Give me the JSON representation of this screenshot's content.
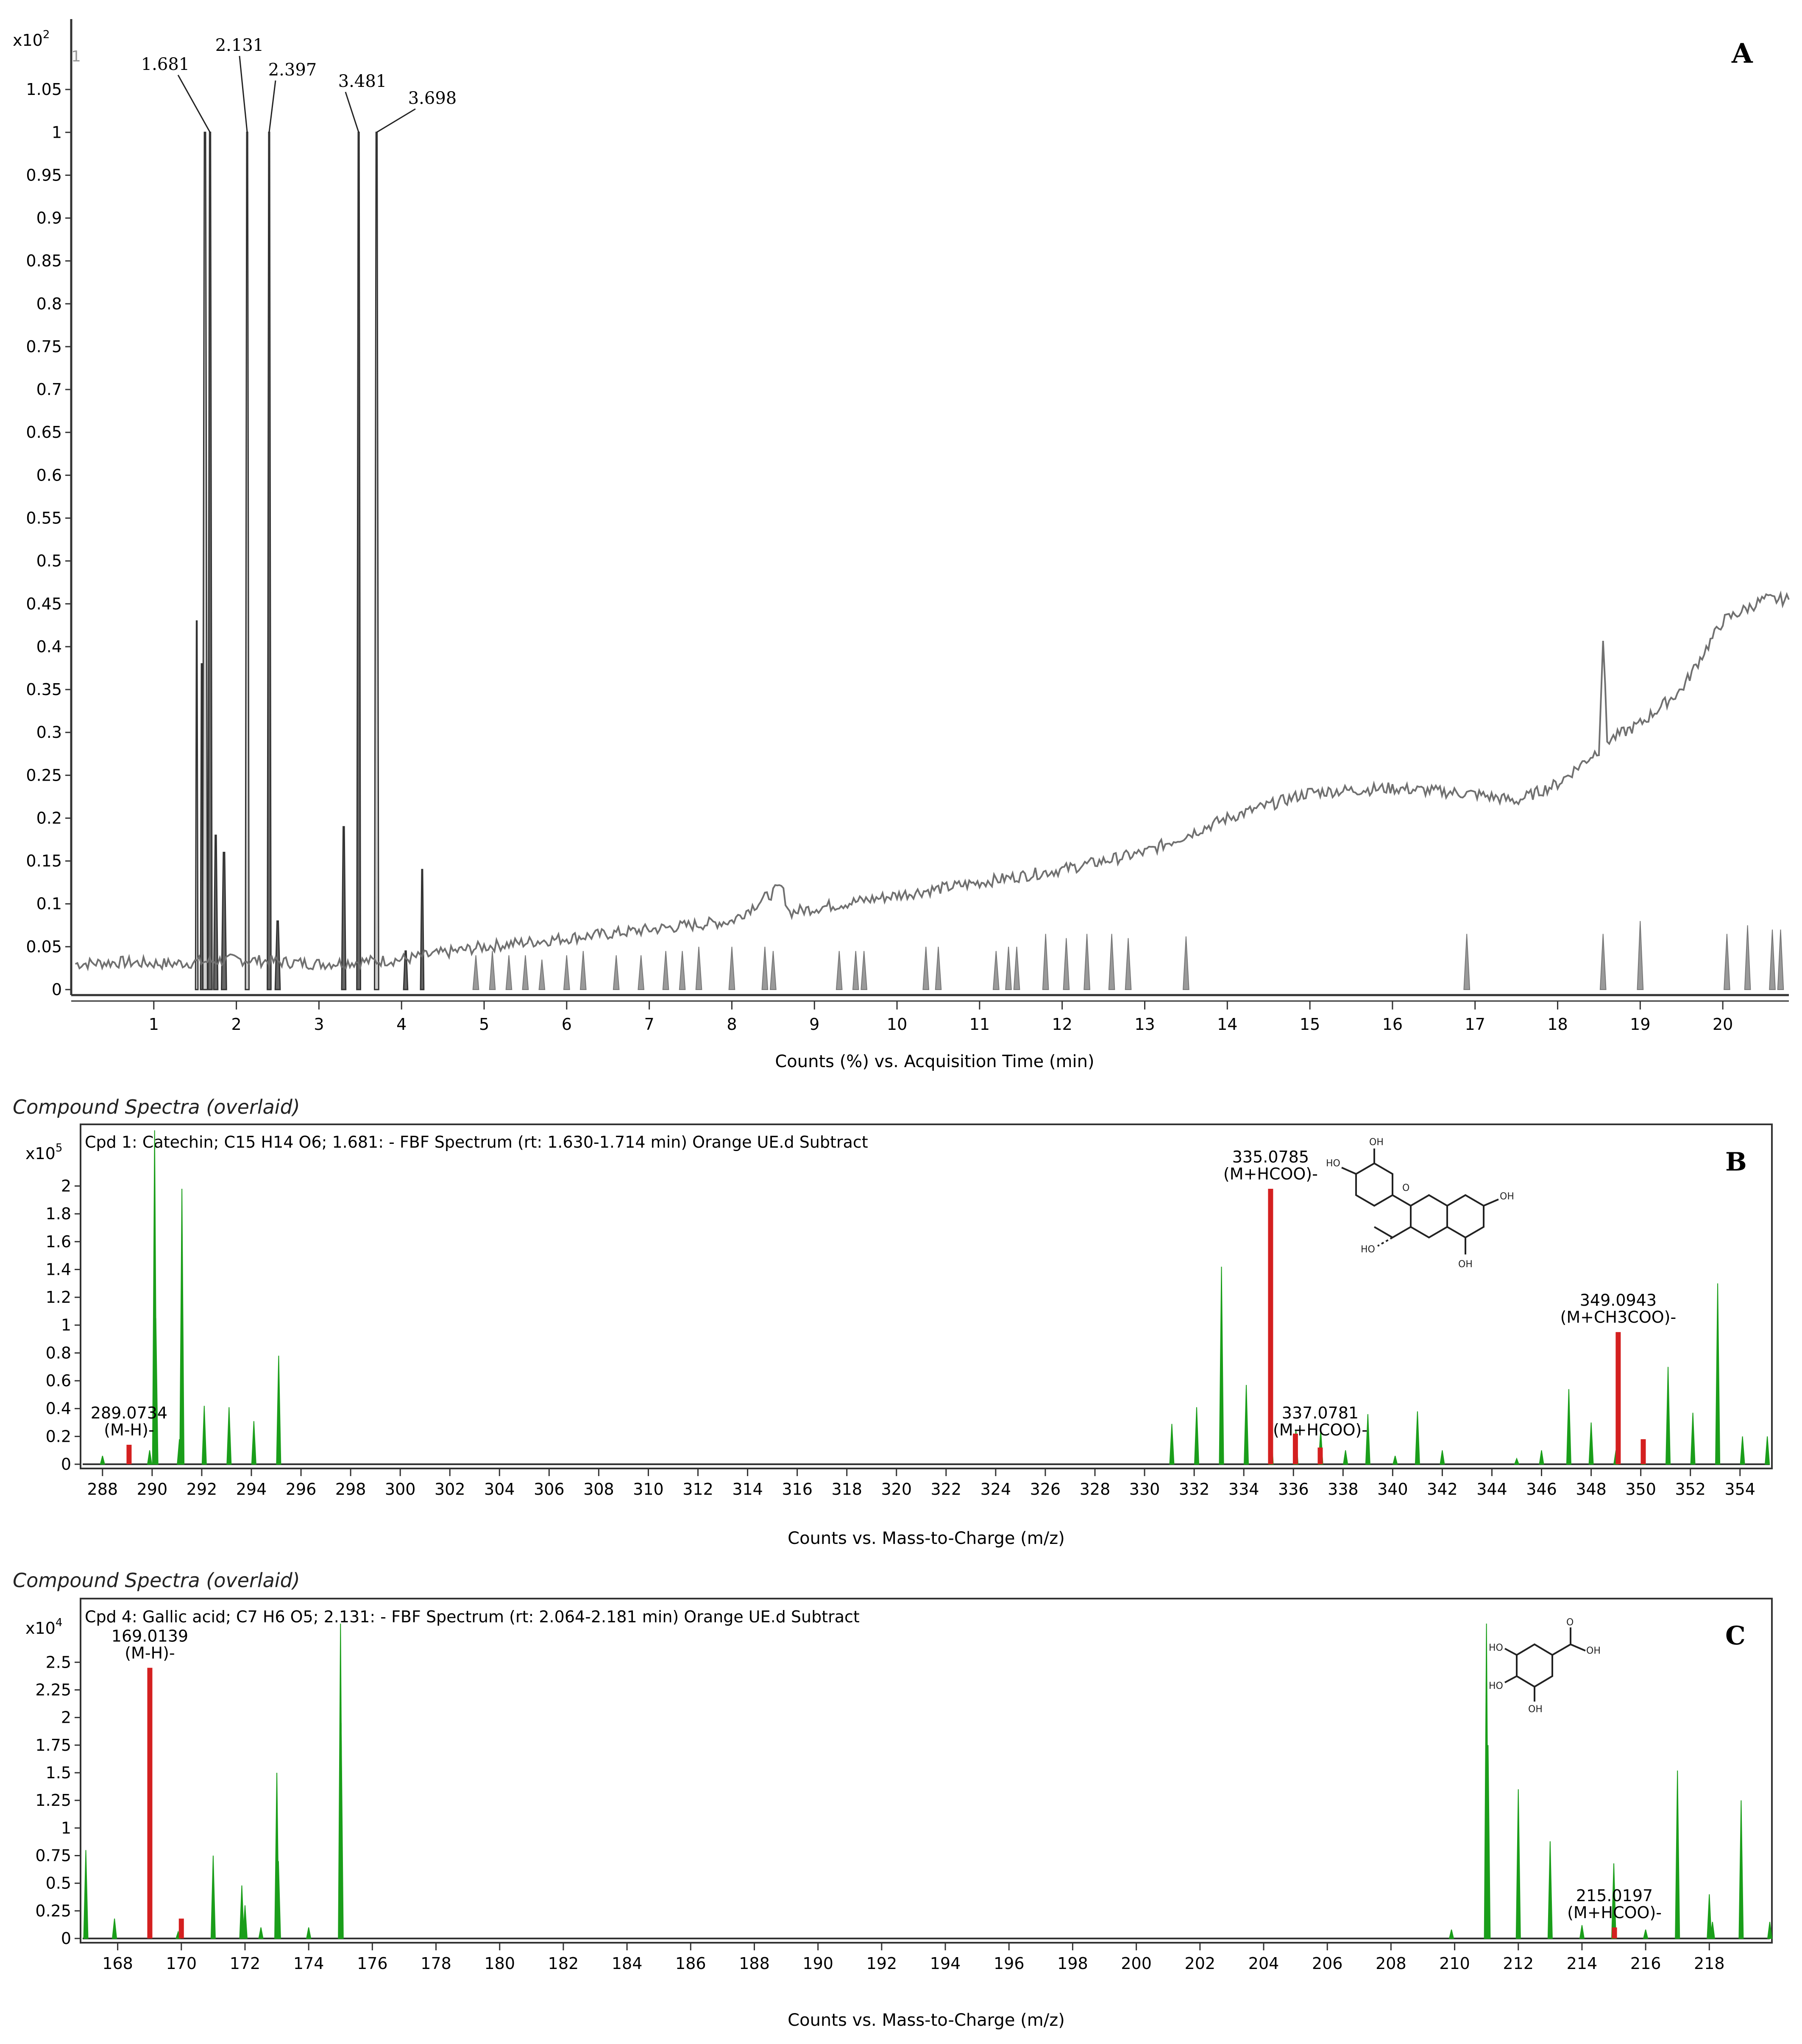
{
  "colors": {
    "background": "#ffffff",
    "axis": "#333333",
    "chromatogram_line": "#707070",
    "peak_fill_dark": "#555555",
    "peak_fill_light": "#c8c8c8",
    "spectrum_green": "#1a9e1a",
    "spectrum_red": "#d42020",
    "frame": "#333333"
  },
  "chart_data": [
    {
      "type": "line",
      "panel_label": "A",
      "multiplier_prefix": "x10",
      "multiplier_exp": "2",
      "corner_mark": "1",
      "xlabel": "Counts (%) vs. Acquisition Time (min)",
      "ylabel": "",
      "xlim": [
        0,
        20.8
      ],
      "ylim": [
        0,
        1.1
      ],
      "x_ticks": [
        "1",
        "2",
        "3",
        "4",
        "5",
        "6",
        "7",
        "8",
        "9",
        "10",
        "11",
        "12",
        "13",
        "14",
        "15",
        "16",
        "17",
        "18",
        "19",
        "20"
      ],
      "y_ticks": [
        "0",
        "0.05",
        "0.1",
        "0.15",
        "0.2",
        "0.25",
        "0.3",
        "0.35",
        "0.4",
        "0.45",
        "0.5",
        "0.55",
        "0.6",
        "0.65",
        "0.7",
        "0.75",
        "0.8",
        "0.85",
        "0.9",
        "0.95",
        "1",
        "1.05"
      ],
      "peak_annotations": [
        {
          "label": "1.681",
          "x": 1.681,
          "y": 1.0
        },
        {
          "label": "2.131",
          "x": 2.131,
          "y": 1.0
        },
        {
          "label": "2.397",
          "x": 2.397,
          "y": 1.0
        },
        {
          "label": "3.481",
          "x": 3.481,
          "y": 1.0
        },
        {
          "label": "3.698",
          "x": 3.698,
          "y": 1.0
        }
      ],
      "baseline_trace": [
        [
          0.05,
          0.03
        ],
        [
          0.6,
          0.032
        ],
        [
          1.2,
          0.03
        ],
        [
          2.0,
          0.035
        ],
        [
          3.0,
          0.03
        ],
        [
          4.0,
          0.035
        ],
        [
          5.0,
          0.05
        ],
        [
          6.0,
          0.06
        ],
        [
          7.0,
          0.07
        ],
        [
          8.0,
          0.08
        ],
        [
          8.6,
          0.12
        ],
        [
          8.7,
          0.09
        ],
        [
          9.0,
          0.095
        ],
        [
          10.0,
          0.11
        ],
        [
          11.0,
          0.125
        ],
        [
          12.0,
          0.14
        ],
        [
          13.0,
          0.16
        ],
        [
          14.0,
          0.2
        ],
        [
          15.0,
          0.23
        ],
        [
          16.0,
          0.235
        ],
        [
          17.0,
          0.228
        ],
        [
          17.5,
          0.22
        ],
        [
          18.0,
          0.24
        ],
        [
          18.5,
          0.28
        ],
        [
          18.55,
          0.41
        ],
        [
          18.6,
          0.29
        ],
        [
          19.0,
          0.31
        ],
        [
          19.5,
          0.35
        ],
        [
          20.0,
          0.43
        ],
        [
          20.5,
          0.455
        ],
        [
          20.8,
          0.455
        ]
      ],
      "series": [
        {
          "x": 1.681,
          "height": 1.0,
          "width": 0.05,
          "shade": "dark"
        },
        {
          "x": 1.62,
          "height": 1.0,
          "width": 0.06,
          "shade": "light"
        },
        {
          "x": 2.131,
          "height": 1.0,
          "width": 0.045,
          "shade": "light"
        },
        {
          "x": 2.397,
          "height": 1.0,
          "width": 0.045,
          "shade": "dark"
        },
        {
          "x": 3.481,
          "height": 1.0,
          "width": 0.045,
          "shade": "dark"
        },
        {
          "x": 3.698,
          "height": 1.0,
          "width": 0.05,
          "shade": "light"
        },
        {
          "x": 1.52,
          "height": 0.43,
          "width": 0.03,
          "shade": "light"
        },
        {
          "x": 1.58,
          "height": 0.38,
          "width": 0.03,
          "shade": "dark"
        },
        {
          "x": 1.75,
          "height": 0.18,
          "width": 0.05,
          "shade": "dark"
        },
        {
          "x": 1.85,
          "height": 0.16,
          "width": 0.06,
          "shade": "dark"
        },
        {
          "x": 2.5,
          "height": 0.08,
          "width": 0.06,
          "shade": "dark"
        },
        {
          "x": 3.3,
          "height": 0.19,
          "width": 0.05,
          "shade": "dark"
        },
        {
          "x": 4.25,
          "height": 0.14,
          "width": 0.04,
          "shade": "dark"
        },
        {
          "x": 4.05,
          "height": 0.045,
          "width": 0.05,
          "shade": "dark"
        }
      ],
      "small_peaks": [
        [
          4.9,
          0.04
        ],
        [
          5.1,
          0.045
        ],
        [
          5.3,
          0.04
        ],
        [
          5.5,
          0.04
        ],
        [
          5.7,
          0.035
        ],
        [
          6.0,
          0.04
        ],
        [
          6.2,
          0.045
        ],
        [
          6.6,
          0.04
        ],
        [
          6.9,
          0.04
        ],
        [
          7.2,
          0.045
        ],
        [
          7.4,
          0.045
        ],
        [
          7.6,
          0.05
        ],
        [
          8.0,
          0.05
        ],
        [
          8.4,
          0.05
        ],
        [
          8.5,
          0.045
        ],
        [
          9.3,
          0.045
        ],
        [
          9.5,
          0.045
        ],
        [
          9.6,
          0.045
        ],
        [
          10.35,
          0.05
        ],
        [
          10.5,
          0.05
        ],
        [
          11.2,
          0.045
        ],
        [
          11.35,
          0.05
        ],
        [
          11.45,
          0.05
        ],
        [
          11.8,
          0.065
        ],
        [
          12.05,
          0.06
        ],
        [
          12.3,
          0.065
        ],
        [
          12.6,
          0.065
        ],
        [
          12.8,
          0.06
        ],
        [
          13.5,
          0.062
        ],
        [
          16.9,
          0.065
        ],
        [
          18.55,
          0.065
        ],
        [
          19.0,
          0.08
        ],
        [
          20.05,
          0.065
        ],
        [
          20.3,
          0.075
        ],
        [
          20.6,
          0.07
        ],
        [
          20.7,
          0.07
        ]
      ]
    },
    {
      "type": "bar",
      "panel_label": "B",
      "section_title": "Compound Spectra (overlaid)",
      "header": "Cpd 1: Catechin; C15 H14 O6; 1.681: - FBF Spectrum (rt: 1.630-1.714 min) Orange UE.d  Subtract",
      "multiplier_prefix": "x10",
      "multiplier_exp": "5",
      "xlabel": "Counts vs. Mass-to-Charge (m/z)",
      "ylabel": "",
      "xlim": [
        287.2,
        355.2
      ],
      "ylim": [
        0,
        2.3
      ],
      "x_ticks": [
        "288",
        "290",
        "292",
        "294",
        "296",
        "298",
        "300",
        "302",
        "304",
        "306",
        "308",
        "310",
        "312",
        "314",
        "316",
        "318",
        "320",
        "322",
        "324",
        "326",
        "328",
        "330",
        "332",
        "334",
        "336",
        "338",
        "340",
        "342",
        "344",
        "346",
        "348",
        "350",
        "352",
        "354"
      ],
      "y_ticks": [
        "0",
        "0.2",
        "0.4",
        "0.6",
        "0.8",
        "1",
        "1.2",
        "1.4",
        "1.6",
        "1.8",
        "2"
      ],
      "annotations": [
        {
          "mz": "289.0734",
          "adduct": "(M-H)-",
          "x": 289.07,
          "y": 0.14
        },
        {
          "mz": "335.0785",
          "adduct": "(M+HCOO)-",
          "x": 335.08,
          "y": 1.98
        },
        {
          "mz": "337.0781",
          "adduct": "(M+HCOO)-",
          "x": 337.08,
          "y": 0.14
        },
        {
          "mz": "349.0943",
          "adduct": "(M+CH3COO)-",
          "x": 349.09,
          "y": 0.95
        }
      ],
      "green_peaks": [
        [
          288.0,
          0.06
        ],
        [
          289.9,
          0.1
        ],
        [
          290.1,
          2.4
        ],
        [
          290.15,
          1.05
        ],
        [
          291.1,
          0.18
        ],
        [
          291.2,
          1.98
        ],
        [
          292.1,
          0.42
        ],
        [
          293.1,
          0.41
        ],
        [
          294.1,
          0.31
        ],
        [
          295.1,
          0.78
        ],
        [
          331.1,
          0.29
        ],
        [
          332.1,
          0.41
        ],
        [
          333.1,
          1.42
        ],
        [
          334.1,
          0.57
        ],
        [
          335.1,
          0.28
        ],
        [
          336.1,
          0.25
        ],
        [
          337.1,
          0.25
        ],
        [
          338.1,
          0.1
        ],
        [
          339.0,
          0.36
        ],
        [
          340.1,
          0.06
        ],
        [
          341.0,
          0.38
        ],
        [
          342.0,
          0.1
        ],
        [
          345.0,
          0.04
        ],
        [
          346.0,
          0.1
        ],
        [
          347.1,
          0.54
        ],
        [
          348.0,
          0.3
        ],
        [
          349.0,
          0.1
        ],
        [
          350.1,
          0.18
        ],
        [
          351.1,
          0.7
        ],
        [
          352.1,
          0.37
        ],
        [
          353.1,
          1.3
        ],
        [
          354.1,
          0.2
        ],
        [
          355.1,
          0.2
        ]
      ],
      "red_peaks": [
        [
          289.07,
          0.14
        ],
        [
          335.08,
          1.98
        ],
        [
          336.08,
          0.22
        ],
        [
          337.08,
          0.12
        ],
        [
          349.09,
          0.95
        ],
        [
          350.1,
          0.18
        ]
      ]
    },
    {
      "type": "bar",
      "panel_label": "C",
      "section_title": "Compound Spectra (overlaid)",
      "header": "Cpd 4: Gallic acid; C7 H6 O5; 2.131: - FBF Spectrum (rt: 2.064-2.181 min) Orange UE.d  Subtract",
      "multiplier_prefix": "x10",
      "multiplier_exp": "4",
      "xlabel": "Counts vs. Mass-to-Charge (m/z)",
      "ylabel": "",
      "xlim": [
        166.9,
        219.9
      ],
      "ylim": [
        0,
        2.9
      ],
      "x_ticks": [
        "168",
        "170",
        "172",
        "174",
        "176",
        "178",
        "180",
        "182",
        "184",
        "186",
        "188",
        "190",
        "192",
        "194",
        "196",
        "198",
        "200",
        "202",
        "204",
        "206",
        "208",
        "210",
        "212",
        "214",
        "216",
        "218"
      ],
      "y_ticks": [
        "0",
        "0.25",
        "0.5",
        "0.75",
        "1",
        "1.25",
        "1.5",
        "1.75",
        "2",
        "2.25",
        "2.5"
      ],
      "annotations": [
        {
          "mz": "169.0139",
          "adduct": "(M-H)-",
          "x": 169.01,
          "y": 2.45
        },
        {
          "mz": "215.0197",
          "adduct": "(M+HCOO)-",
          "x": 215.02,
          "y": 0.1
        }
      ],
      "green_peaks": [
        [
          167.0,
          0.8
        ],
        [
          167.9,
          0.18
        ],
        [
          169.9,
          0.06
        ],
        [
          171.0,
          0.75
        ],
        [
          171.9,
          0.48
        ],
        [
          172.0,
          0.3
        ],
        [
          172.5,
          0.1
        ],
        [
          173.0,
          1.5
        ],
        [
          173.05,
          0.7
        ],
        [
          174.0,
          0.1
        ],
        [
          175.0,
          2.85
        ],
        [
          175.02,
          1.95
        ],
        [
          209.9,
          0.08
        ],
        [
          211.0,
          2.85
        ],
        [
          211.05,
          1.75
        ],
        [
          212.0,
          1.35
        ],
        [
          213.0,
          0.88
        ],
        [
          214.0,
          0.12
        ],
        [
          215.0,
          0.68
        ],
        [
          216.0,
          0.08
        ],
        [
          217.0,
          1.52
        ],
        [
          218.0,
          0.4
        ],
        [
          218.1,
          0.15
        ],
        [
          219.0,
          1.25
        ],
        [
          219.9,
          0.15
        ]
      ],
      "red_peaks": [
        [
          169.01,
          2.45
        ],
        [
          170.0,
          0.18
        ],
        [
          215.02,
          0.1
        ]
      ]
    }
  ]
}
